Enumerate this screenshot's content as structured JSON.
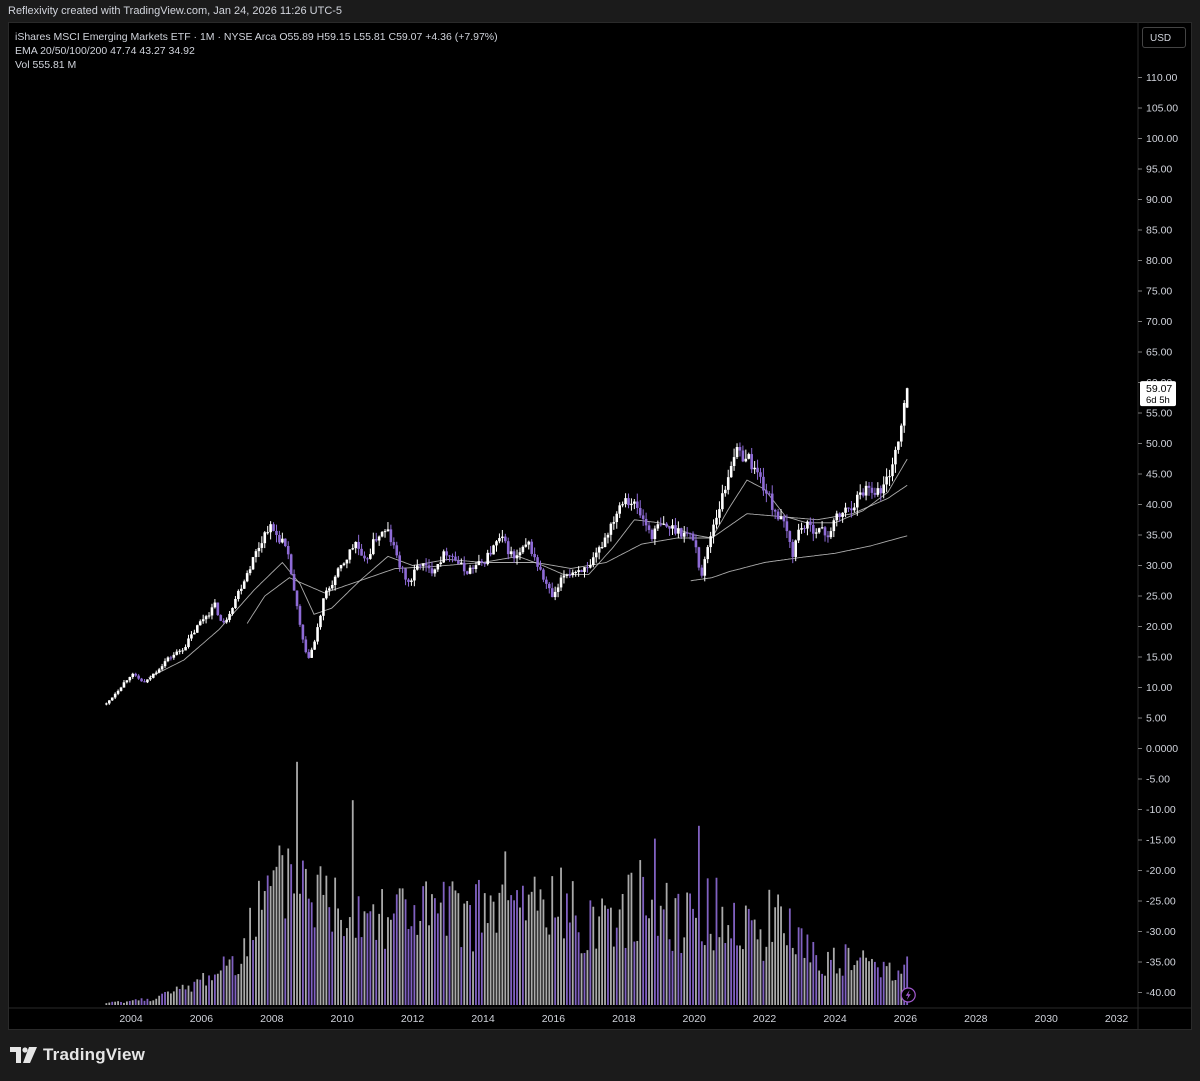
{
  "header": {
    "attribution": "Reflexivity created with TradingView.com, Jan 24, 2026 11:26 UTC-5"
  },
  "legend": {
    "title_line": "iShares MSCI Emerging Markets ETF · 1M · NYSE Arca  O55.89  H59.15  L55.81  C59.07  +4.36 (+7.97%)",
    "ema_line": "EMA 20/50/100/200  47.74  43.27  34.92",
    "vol_line": "Vol  555.81 M"
  },
  "currency_button": "USD",
  "price_tag": {
    "value": "59.07",
    "countdown": "6d 5h"
  },
  "footer": {
    "brand": "TradingView"
  },
  "colors": {
    "up": "#ffffff",
    "down": "#8e6bd6",
    "ema": "#c8c8c8",
    "background": "#000000"
  },
  "chart_data": {
    "type": "candlestick",
    "title": "iShares MSCI Emerging Markets ETF",
    "interval": "1M",
    "exchange": "NYSE Arca",
    "last_bar": {
      "open": 55.89,
      "high": 59.15,
      "low": 55.81,
      "close": 59.07,
      "change": 4.36,
      "change_pct": 7.97
    },
    "x_ticks": [
      "2004",
      "2006",
      "2008",
      "2010",
      "2012",
      "2014",
      "2016",
      "2018",
      "2020",
      "2022",
      "2024",
      "2026",
      "2028",
      "2030",
      "2032"
    ],
    "x_tick_years": [
      2004,
      2006,
      2008,
      2010,
      2012,
      2014,
      2016,
      2018,
      2020,
      2022,
      2024,
      2026,
      2028,
      2030,
      2032
    ],
    "y_ticks": [
      "110.00",
      "105.00",
      "100.00",
      "95.00",
      "90.00",
      "85.00",
      "80.00",
      "75.00",
      "70.00",
      "65.00",
      "60.00",
      "55.00",
      "50.00",
      "45.00",
      "40.00",
      "35.00",
      "30.00",
      "25.00",
      "20.00",
      "15.00",
      "10.00",
      "5.00",
      "0.0000",
      "-5.00",
      "-10.00",
      "-15.00",
      "-20.00",
      "-25.00",
      "-30.00",
      "-35.00",
      "-40.00"
    ],
    "y_tick_values": [
      110,
      105,
      100,
      95,
      90,
      85,
      80,
      75,
      70,
      65,
      60,
      55,
      50,
      45,
      40,
      35,
      30,
      25,
      20,
      15,
      10,
      5,
      0,
      -5,
      -10,
      -15,
      -20,
      -25,
      -30,
      -35,
      -40
    ],
    "price_anchors": [
      [
        2003.3,
        7.3
      ],
      [
        2004.0,
        12.2
      ],
      [
        2004.4,
        10.7
      ],
      [
        2005.0,
        14.5
      ],
      [
        2005.5,
        16.5
      ],
      [
        2006.0,
        21.0
      ],
      [
        2006.4,
        23.5
      ],
      [
        2006.6,
        20.0
      ],
      [
        2007.0,
        25.0
      ],
      [
        2007.5,
        31.5
      ],
      [
        2007.9,
        36.5
      ],
      [
        2008.3,
        34.0
      ],
      [
        2008.5,
        30.5
      ],
      [
        2008.8,
        20.0
      ],
      [
        2009.0,
        14.5
      ],
      [
        2009.2,
        17.0
      ],
      [
        2009.5,
        25.0
      ],
      [
        2010.0,
        30.0
      ],
      [
        2010.4,
        34.0
      ],
      [
        2010.6,
        30.0
      ],
      [
        2011.0,
        35.0
      ],
      [
        2011.3,
        35.5
      ],
      [
        2011.7,
        29.0
      ],
      [
        2011.9,
        27.0
      ],
      [
        2012.2,
        30.5
      ],
      [
        2012.5,
        29.0
      ],
      [
        2013.0,
        32.5
      ],
      [
        2013.5,
        29.0
      ],
      [
        2014.0,
        30.5
      ],
      [
        2014.5,
        34.5
      ],
      [
        2014.9,
        31.0
      ],
      [
        2015.3,
        33.5
      ],
      [
        2015.7,
        28.0
      ],
      [
        2016.0,
        24.5
      ],
      [
        2016.3,
        28.5
      ],
      [
        2016.8,
        29.5
      ],
      [
        2017.0,
        29.0
      ],
      [
        2017.5,
        35.0
      ],
      [
        2018.0,
        41.5
      ],
      [
        2018.3,
        40.0
      ],
      [
        2018.8,
        35.0
      ],
      [
        2019.0,
        36.5
      ],
      [
        2019.5,
        36.0
      ],
      [
        2020.0,
        34.5
      ],
      [
        2020.2,
        28.0
      ],
      [
        2020.5,
        36.0
      ],
      [
        2020.9,
        43.0
      ],
      [
        2021.1,
        48.5
      ],
      [
        2021.5,
        48.0
      ],
      [
        2021.9,
        44.0
      ],
      [
        2022.2,
        40.0
      ],
      [
        2022.6,
        36.0
      ],
      [
        2022.8,
        32.0
      ],
      [
        2023.0,
        36.5
      ],
      [
        2023.5,
        36.0
      ],
      [
        2023.8,
        35.0
      ],
      [
        2024.0,
        37.5
      ],
      [
        2024.5,
        40.0
      ],
      [
        2024.9,
        43.0
      ],
      [
        2025.3,
        42.0
      ],
      [
        2025.5,
        44.5
      ],
      [
        2025.8,
        50.0
      ],
      [
        2025.95,
        55.0
      ],
      [
        2026.08,
        59.07
      ]
    ],
    "ema_anchors": {
      "ema20": [
        [
          2004.5,
          11.6
        ],
        [
          2005.5,
          14.5
        ],
        [
          2006.5,
          19.5
        ],
        [
          2007.5,
          26.0
        ],
        [
          2008.3,
          30.5
        ],
        [
          2008.8,
          27.0
        ],
        [
          2009.2,
          22.0
        ],
        [
          2009.7,
          23.0
        ],
        [
          2010.5,
          27.5
        ],
        [
          2011.3,
          31.5
        ],
        [
          2012.0,
          30.0
        ],
        [
          2013.0,
          31.0
        ],
        [
          2014.0,
          30.5
        ],
        [
          2015.0,
          31.5
        ],
        [
          2015.7,
          30.0
        ],
        [
          2016.3,
          28.5
        ],
        [
          2017.0,
          28.5
        ],
        [
          2017.7,
          33.0
        ],
        [
          2018.3,
          37.5
        ],
        [
          2019.0,
          37.0
        ],
        [
          2020.0,
          35.0
        ],
        [
          2020.5,
          34.5
        ],
        [
          2021.0,
          39.5
        ],
        [
          2021.5,
          44.0
        ],
        [
          2022.0,
          42.5
        ],
        [
          2022.6,
          38.0
        ],
        [
          2023.2,
          37.0
        ],
        [
          2024.0,
          37.0
        ],
        [
          2024.8,
          39.0
        ],
        [
          2025.5,
          42.0
        ],
        [
          2026.08,
          47.74
        ]
      ],
      "ema50": [
        [
          2007.3,
          20.5
        ],
        [
          2007.8,
          25.0
        ],
        [
          2008.5,
          28.0
        ],
        [
          2009.5,
          25.5
        ],
        [
          2010.5,
          27.5
        ],
        [
          2011.5,
          29.5
        ],
        [
          2012.5,
          29.8
        ],
        [
          2014.0,
          30.5
        ],
        [
          2015.5,
          30.5
        ],
        [
          2016.5,
          29.5
        ],
        [
          2017.5,
          30.5
        ],
        [
          2018.5,
          33.5
        ],
        [
          2019.5,
          34.5
        ],
        [
          2020.5,
          34.5
        ],
        [
          2021.5,
          38.5
        ],
        [
          2022.5,
          38.0
        ],
        [
          2023.5,
          37.5
        ],
        [
          2024.5,
          38.5
        ],
        [
          2025.5,
          41.0
        ],
        [
          2026.08,
          43.27
        ]
      ],
      "ema200": [
        [
          2019.9,
          27.5
        ],
        [
          2020.5,
          28.0
        ],
        [
          2021.0,
          29.0
        ],
        [
          2022.0,
          30.5
        ],
        [
          2023.0,
          31.3
        ],
        [
          2024.0,
          32.0
        ],
        [
          2025.0,
          33.2
        ],
        [
          2026.08,
          34.92
        ]
      ]
    },
    "volume_last": "555.81 M",
    "volume_anchors": [
      [
        2003.3,
        0.3
      ],
      [
        2004.5,
        1.0
      ],
      [
        2005.5,
        2.5
      ],
      [
        2006.3,
        5.0
      ],
      [
        2007.0,
        8.0
      ],
      [
        2007.5,
        14.0
      ],
      [
        2008.0,
        18.0
      ],
      [
        2008.5,
        20.0
      ],
      [
        2008.8,
        22.0
      ],
      [
        2009.3,
        18.0
      ],
      [
        2010.0,
        16.5
      ],
      [
        2011.0,
        16.0
      ],
      [
        2012.0,
        15.5
      ],
      [
        2013.0,
        14.5
      ],
      [
        2014.0,
        15.0
      ],
      [
        2015.0,
        16.5
      ],
      [
        2016.0,
        16.5
      ],
      [
        2017.0,
        14.0
      ],
      [
        2018.0,
        15.5
      ],
      [
        2018.8,
        18.0
      ],
      [
        2019.5,
        14.5
      ],
      [
        2020.3,
        15.5
      ],
      [
        2021.0,
        14.0
      ],
      [
        2022.0,
        12.0
      ],
      [
        2022.6,
        13.5
      ],
      [
        2023.3,
        8.5
      ],
      [
        2024.0,
        7.5
      ],
      [
        2025.0,
        6.5
      ],
      [
        2026.08,
        6.5
      ]
    ],
    "volume_spikes": [
      [
        2008.75,
        38
      ],
      [
        2010.3,
        32
      ],
      [
        2014.6,
        24
      ],
      [
        2018.9,
        26
      ],
      [
        2020.1,
        28
      ],
      [
        2008.55,
        22
      ],
      [
        2022.1,
        18
      ]
    ],
    "grid": false,
    "legend_position": "top-left"
  }
}
